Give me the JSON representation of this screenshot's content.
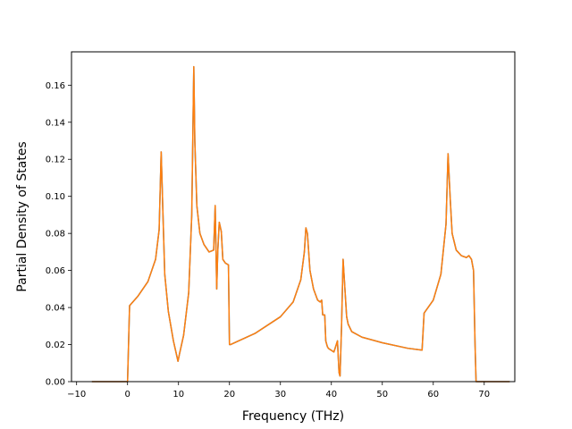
{
  "chart_data": {
    "type": "line",
    "title": "",
    "xlabel": "Frequency (THz)",
    "ylabel": "Partial Density of States",
    "xlim": [
      -11,
      76
    ],
    "ylim": [
      0.0,
      0.178
    ],
    "grid": false,
    "x_ticks": [
      -10,
      0,
      10,
      20,
      30,
      40,
      50,
      60,
      70
    ],
    "x_tick_labels": [
      "−10",
      "0",
      "10",
      "20",
      "30",
      "40",
      "50",
      "60",
      "70"
    ],
    "y_ticks": [
      0.0,
      0.02,
      0.04,
      0.06,
      0.08,
      0.1,
      0.12,
      0.14,
      0.16
    ],
    "y_tick_labels": [
      "0.00",
      "0.02",
      "0.04",
      "0.06",
      "0.08",
      "0.10",
      "0.12",
      "0.14",
      "0.16"
    ],
    "series": [
      {
        "color": "#1f77b4",
        "x": [
          -7.0,
          -0.3,
          0.0,
          0.4,
          2.0,
          4.0,
          5.5,
          6.2,
          6.6,
          6.9,
          7.3,
          8.0,
          9.0,
          9.9,
          10.2,
          11.0,
          12.0,
          12.6,
          13.0,
          13.2,
          13.6,
          14.2,
          15.0,
          16.0,
          16.9,
          17.2,
          17.5,
          17.7,
          18.0,
          18.4,
          18.7,
          19.2,
          19.8,
          20.0,
          20.2,
          25.0,
          30.0,
          32.5,
          34.0,
          34.7,
          35.0,
          35.3,
          35.8,
          36.5,
          37.3,
          37.8,
          38.1,
          38.3,
          38.7,
          38.9,
          39.2,
          39.4,
          40.5,
          41.2,
          41.5,
          41.7,
          42.0,
          42.3,
          43.0,
          43.3,
          44.0,
          46.0,
          50.0,
          55.0,
          57.8,
          58.2,
          60.0,
          61.5,
          62.5,
          62.9,
          63.3,
          63.7,
          64.5,
          65.5,
          66.5,
          67.0,
          67.5,
          67.9,
          68.2,
          68.4,
          75.0
        ],
        "y": [
          0.0,
          0.0,
          0.0,
          0.041,
          0.046,
          0.054,
          0.066,
          0.082,
          0.124,
          0.095,
          0.058,
          0.038,
          0.022,
          0.011,
          0.015,
          0.025,
          0.048,
          0.09,
          0.17,
          0.13,
          0.095,
          0.08,
          0.074,
          0.07,
          0.071,
          0.095,
          0.05,
          0.07,
          0.086,
          0.081,
          0.066,
          0.064,
          0.063,
          0.02,
          0.02,
          0.026,
          0.035,
          0.043,
          0.055,
          0.07,
          0.083,
          0.08,
          0.06,
          0.05,
          0.044,
          0.043,
          0.044,
          0.036,
          0.036,
          0.022,
          0.019,
          0.018,
          0.016,
          0.022,
          0.005,
          0.003,
          0.03,
          0.066,
          0.035,
          0.031,
          0.027,
          0.024,
          0.021,
          0.018,
          0.017,
          0.037,
          0.044,
          0.058,
          0.085,
          0.123,
          0.1,
          0.08,
          0.071,
          0.068,
          0.067,
          0.068,
          0.066,
          0.06,
          0.02,
          0.0,
          0.0
        ]
      },
      {
        "color": "#ff7f0e",
        "x": [
          -7.0,
          -0.3,
          0.0,
          0.4,
          2.0,
          4.0,
          5.5,
          6.2,
          6.6,
          6.9,
          7.3,
          8.0,
          9.0,
          9.9,
          10.2,
          11.0,
          12.0,
          12.6,
          13.0,
          13.2,
          13.6,
          14.2,
          15.0,
          16.0,
          16.9,
          17.2,
          17.5,
          17.7,
          18.0,
          18.4,
          18.7,
          19.2,
          19.8,
          20.0,
          20.2,
          25.0,
          30.0,
          32.5,
          34.0,
          34.7,
          35.0,
          35.3,
          35.8,
          36.5,
          37.3,
          37.8,
          38.1,
          38.3,
          38.7,
          38.9,
          39.2,
          39.4,
          40.5,
          41.2,
          41.5,
          41.7,
          42.0,
          42.3,
          43.0,
          43.3,
          44.0,
          46.0,
          50.0,
          55.0,
          57.8,
          58.2,
          60.0,
          61.5,
          62.5,
          62.9,
          63.3,
          63.7,
          64.5,
          65.5,
          66.5,
          67.0,
          67.5,
          67.9,
          68.2,
          68.4,
          75.0
        ],
        "y": [
          0.0,
          0.0,
          0.0,
          0.041,
          0.046,
          0.054,
          0.066,
          0.082,
          0.124,
          0.095,
          0.058,
          0.038,
          0.022,
          0.011,
          0.015,
          0.025,
          0.048,
          0.09,
          0.17,
          0.13,
          0.095,
          0.08,
          0.074,
          0.07,
          0.071,
          0.095,
          0.05,
          0.07,
          0.086,
          0.081,
          0.066,
          0.064,
          0.063,
          0.02,
          0.02,
          0.026,
          0.035,
          0.043,
          0.055,
          0.07,
          0.083,
          0.08,
          0.06,
          0.05,
          0.044,
          0.043,
          0.044,
          0.036,
          0.036,
          0.022,
          0.019,
          0.018,
          0.016,
          0.022,
          0.005,
          0.003,
          0.03,
          0.066,
          0.035,
          0.031,
          0.027,
          0.024,
          0.021,
          0.018,
          0.017,
          0.037,
          0.044,
          0.058,
          0.085,
          0.123,
          0.1,
          0.08,
          0.071,
          0.068,
          0.067,
          0.068,
          0.066,
          0.06,
          0.02,
          0.0,
          0.0
        ]
      }
    ]
  }
}
